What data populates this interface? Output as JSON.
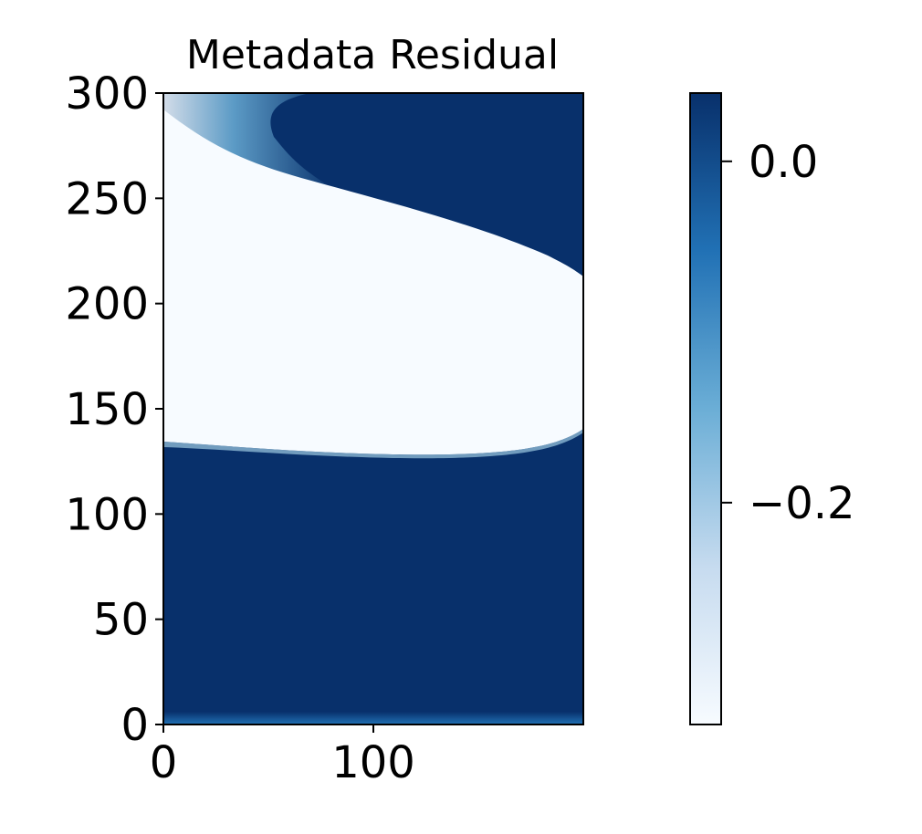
{
  "chart_data": {
    "type": "heatmap",
    "title": "Metadata Residual",
    "xlabel": "",
    "ylabel": "",
    "xlim": [
      0,
      200
    ],
    "ylim": [
      0,
      300
    ],
    "x_ticks": [
      0,
      100
    ],
    "x_tick_labels": [
      "0",
      "100"
    ],
    "y_ticks": [
      0,
      50,
      100,
      150,
      200,
      250,
      300
    ],
    "y_tick_labels": [
      "0",
      "50",
      "100",
      "150",
      "200",
      "250",
      "300"
    ],
    "colormap": "Blues",
    "colors": {
      "low": "#f7fbff",
      "mid": "#6baed6",
      "high": "#08306b"
    },
    "colorbar": {
      "range": [
        -0.33,
        0.04
      ],
      "ticks": [
        0.0,
        -0.2
      ],
      "tick_labels": [
        "0.0",
        "−0.2"
      ]
    },
    "regions": [
      {
        "description": "low-residual band",
        "value": -0.33,
        "boundary_lower": [
          [
            0,
            130
          ],
          [
            50,
            129
          ],
          [
            100,
            127
          ],
          [
            150,
            130
          ],
          [
            180,
            134
          ],
          [
            200,
            141
          ]
        ],
        "boundary_upper": [
          [
            0,
            290
          ],
          [
            20,
            283
          ],
          [
            50,
            268
          ],
          [
            100,
            255
          ],
          [
            150,
            240
          ],
          [
            180,
            226
          ],
          [
            200,
            213
          ]
        ]
      },
      {
        "description": "high-residual region",
        "value": 0.04
      }
    ]
  }
}
